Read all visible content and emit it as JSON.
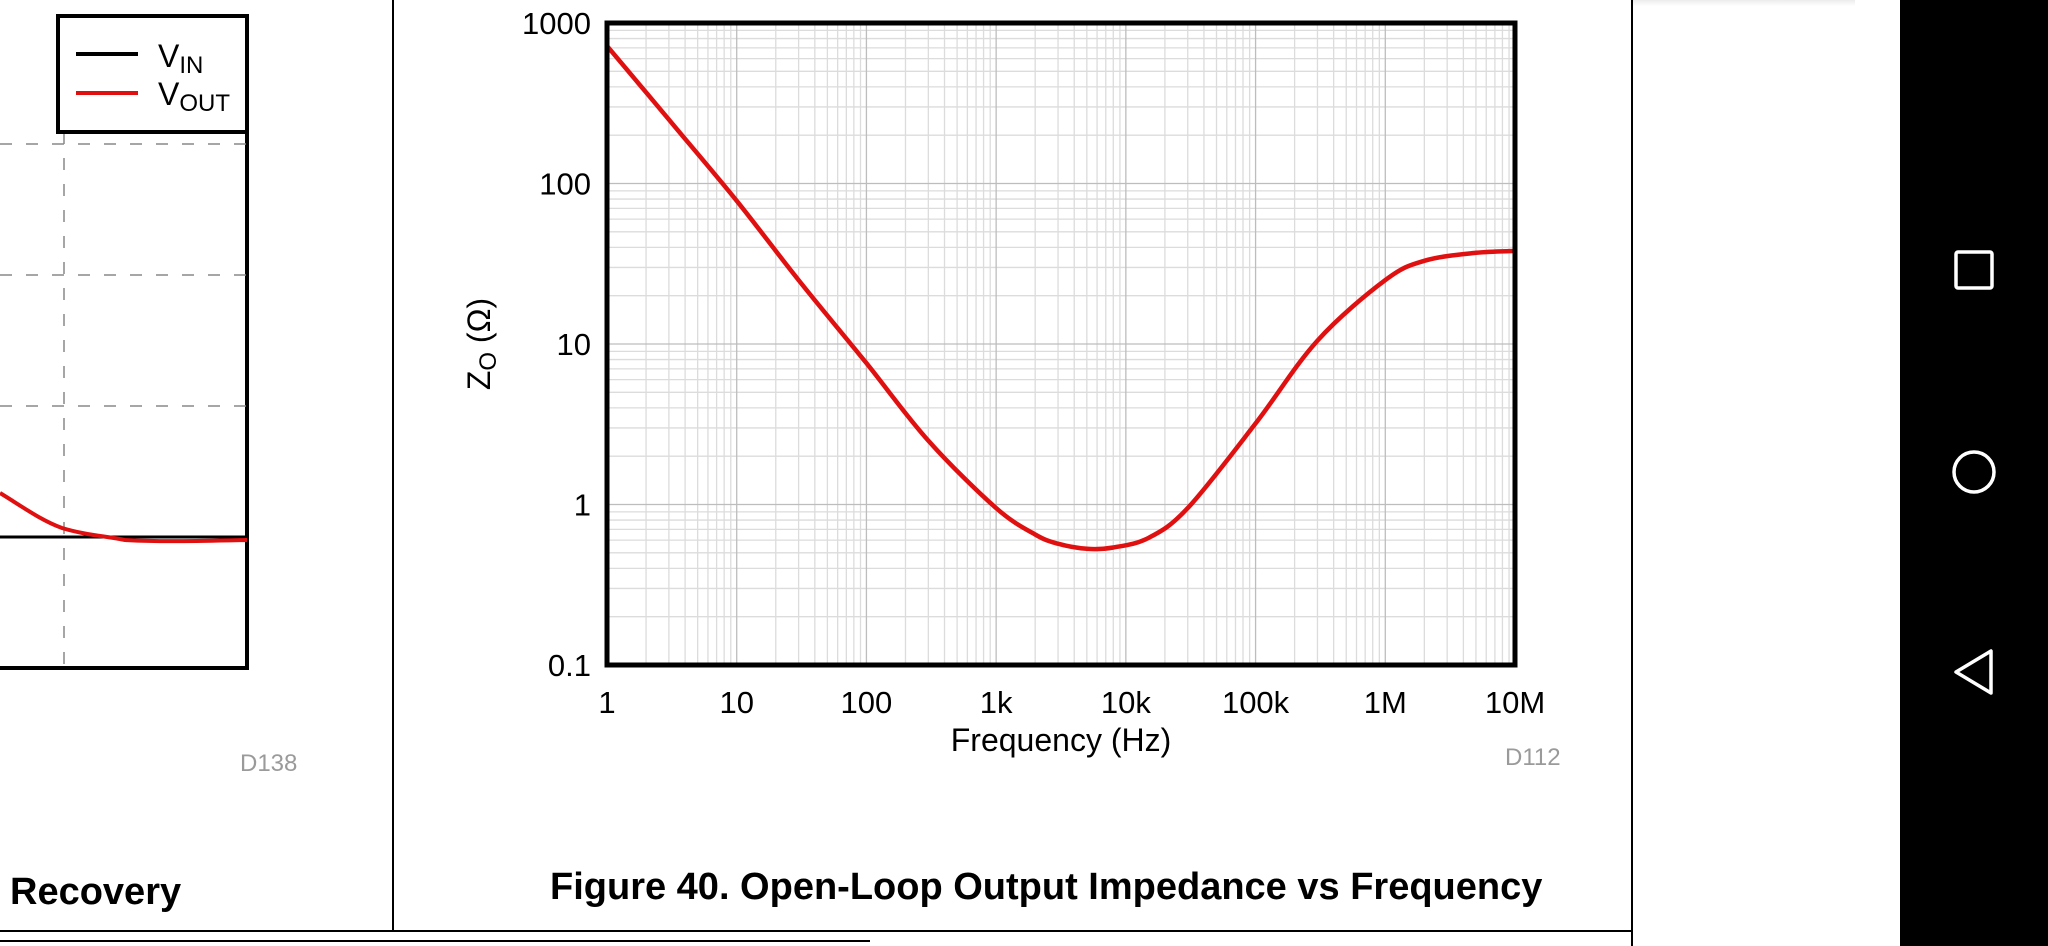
{
  "left_figure": {
    "legend": [
      {
        "label": "V",
        "sub": "IN",
        "color": "#000000"
      },
      {
        "label": "V",
        "sub": "OUT",
        "color": "#e01010"
      }
    ],
    "figure_id": "D138",
    "caption": "Recovery"
  },
  "right_figure": {
    "figure_id": "D112",
    "caption": "Figure 40. Open-Loop Output Impedance vs Frequency"
  },
  "chart_data": {
    "type": "line",
    "title": "Figure 40. Open-Loop Output Impedance vs Frequency",
    "xlabel": "Frequency (Hz)",
    "ylabel_main": "Z",
    "ylabel_sub": "O",
    "ylabel_unit": " (Ω)",
    "x_scale": "log",
    "y_scale": "log",
    "xlim": [
      1,
      10000000
    ],
    "ylim": [
      0.1,
      1000
    ],
    "x_ticks": [
      {
        "value": 1,
        "label": "1"
      },
      {
        "value": 10,
        "label": "10"
      },
      {
        "value": 100,
        "label": "100"
      },
      {
        "value": 1000,
        "label": "1k"
      },
      {
        "value": 10000,
        "label": "10k"
      },
      {
        "value": 100000,
        "label": "100k"
      },
      {
        "value": 1000000,
        "label": "1M"
      },
      {
        "value": 10000000,
        "label": "10M"
      }
    ],
    "y_ticks": [
      {
        "value": 0.1,
        "label": "0.1"
      },
      {
        "value": 1,
        "label": "1"
      },
      {
        "value": 10,
        "label": "10"
      },
      {
        "value": 100,
        "label": "100"
      },
      {
        "value": 1000,
        "label": "1000"
      }
    ],
    "grid": true,
    "series": [
      {
        "color": "#e01010",
        "x": [
          1,
          3,
          10,
          30,
          100,
          300,
          1000,
          2000,
          3000,
          5000,
          8000,
          15000,
          30000,
          100000,
          300000,
          1000000,
          2000000,
          5000000,
          10000000
        ],
        "y": [
          720,
          250,
          78,
          25,
          7.6,
          2.5,
          0.95,
          0.65,
          0.57,
          0.53,
          0.54,
          0.62,
          0.95,
          3.2,
          10.5,
          25,
          33,
          37,
          38
        ]
      }
    ]
  },
  "navbar": {
    "buttons": [
      "recents-icon",
      "home-icon",
      "back-icon"
    ]
  }
}
